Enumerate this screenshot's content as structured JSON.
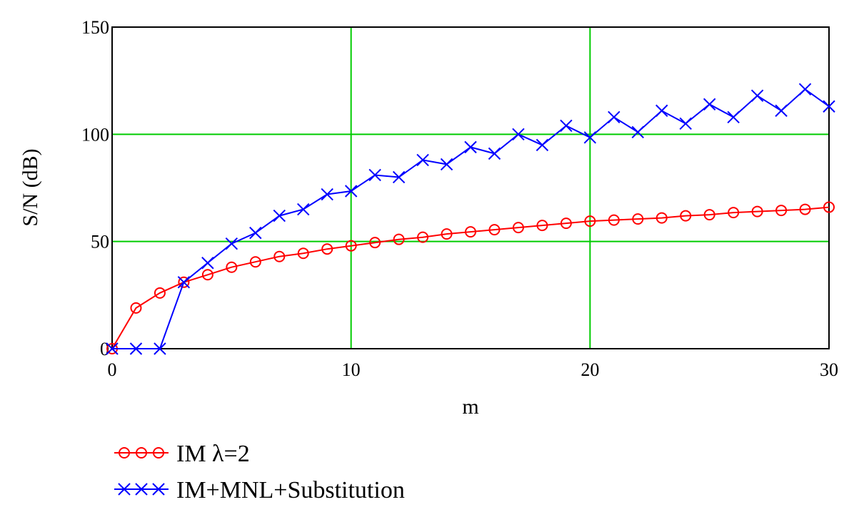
{
  "chart_data": {
    "type": "line",
    "title": "",
    "xlabel": "m",
    "ylabel": "S/N (dB)",
    "xlim": [
      0,
      30
    ],
    "ylim": [
      0,
      150
    ],
    "x_ticks": [
      "0",
      "10",
      "20",
      "30"
    ],
    "y_ticks": [
      "0",
      "50",
      "100",
      "150"
    ],
    "grid": true,
    "grid_color": "#00cc00",
    "legend_position": "bottom-left",
    "x": [
      0,
      1,
      2,
      3,
      4,
      5,
      6,
      7,
      8,
      9,
      10,
      11,
      12,
      13,
      14,
      15,
      16,
      17,
      18,
      19,
      20,
      21,
      22,
      23,
      24,
      25,
      26,
      27,
      28,
      29,
      30
    ],
    "series": [
      {
        "name": "IM λ=2",
        "color": "#ff0000",
        "marker": "circle",
        "values": [
          0,
          19,
          26,
          31,
          34.5,
          38,
          40.5,
          43,
          44.5,
          46.5,
          48,
          49.5,
          51,
          52,
          53.5,
          54.5,
          55.5,
          56.5,
          57.5,
          58.5,
          59.5,
          60,
          60.5,
          61,
          62,
          62.5,
          63.5,
          64,
          64.5,
          65,
          66
        ]
      },
      {
        "name": "IM+MNL+Substitution",
        "color": "#0000ff",
        "marker": "x",
        "values": [
          0,
          0,
          0,
          31,
          40,
          49,
          54,
          62,
          65,
          72,
          73.5,
          81,
          80,
          88,
          86,
          94,
          91,
          100,
          95,
          104,
          98.5,
          108,
          101,
          111,
          105,
          114,
          108,
          118,
          111,
          121,
          113
        ]
      }
    ]
  }
}
